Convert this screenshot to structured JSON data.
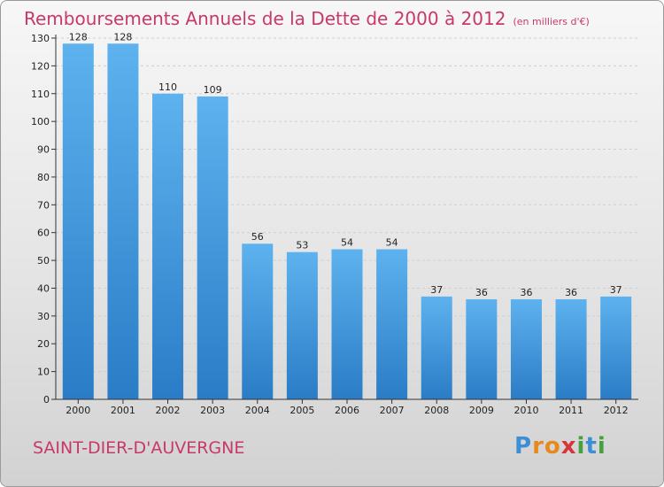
{
  "chart_data": {
    "type": "bar",
    "title": "Remboursements Annuels de la Dette de 2000 à 2012",
    "subtitle": "(en milliers d'€)",
    "categories": [
      "2000",
      "2001",
      "2002",
      "2003",
      "2004",
      "2005",
      "2006",
      "2007",
      "2008",
      "2009",
      "2010",
      "2011",
      "2012"
    ],
    "values": [
      128,
      128,
      110,
      109,
      56,
      53,
      54,
      54,
      37,
      36,
      36,
      36,
      37
    ],
    "ylim": [
      0,
      130
    ],
    "yticks": [
      0,
      10,
      20,
      30,
      40,
      50,
      60,
      70,
      80,
      90,
      100,
      110,
      120,
      130
    ],
    "xlabel": "",
    "ylabel": "",
    "grid": true,
    "colors": {
      "bar_light": "#5eb2ee",
      "bar_dark": "#2a7cc6",
      "title": "#c8386a"
    }
  },
  "commune": "SAINT-DIER-D'AUVERGNE",
  "logo": {
    "text": "Proxiti",
    "letters": [
      "P",
      "r",
      "o",
      "x",
      "i",
      "t",
      "i"
    ],
    "colors": [
      "#3c8fd4",
      "#e8891c",
      "#e8891c",
      "#d8343a",
      "#46a03c",
      "#3c8fd4",
      "#46a03c"
    ]
  }
}
